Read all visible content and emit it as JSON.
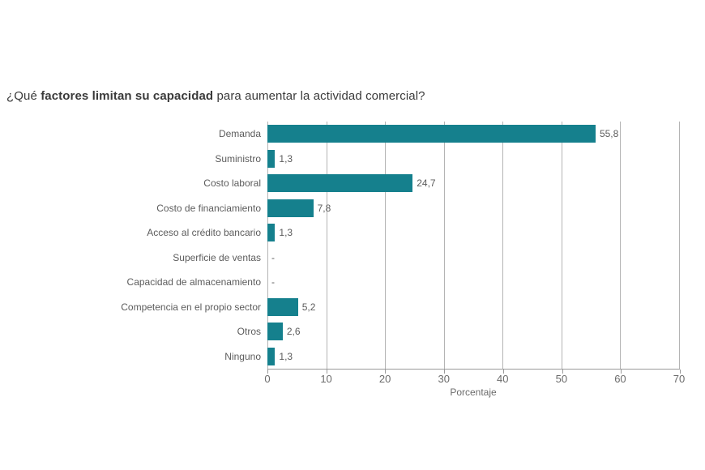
{
  "page": {
    "background": "#ffffff"
  },
  "title": {
    "prefix": "¿Qué ",
    "bold": "factores limitan su capacidad",
    "suffix": " para aumentar la actividad comercial?"
  },
  "chart_data": {
    "type": "bar",
    "orientation": "horizontal",
    "title": "¿Qué factores limitan su capacidad para aumentar la actividad comercial?",
    "categories": [
      "Demanda",
      "Suministro",
      "Costo laboral",
      "Costo de financiamiento",
      "Acceso al crédito bancario",
      "Superficie de ventas",
      "Capacidad de almacenamiento",
      "Competencia en el propio sector",
      "Otros",
      "Ninguno"
    ],
    "values": [
      55.8,
      1.3,
      24.7,
      7.8,
      1.3,
      null,
      null,
      5.2,
      2.6,
      1.3
    ],
    "value_labels": [
      "55,8",
      "1,3",
      "24,7",
      "7,8",
      "1,3",
      "-",
      "-",
      "5,2",
      "2,6",
      "1,3"
    ],
    "xlabel": "Porcentaje",
    "ylabel": "",
    "xlim": [
      0,
      70
    ],
    "xticks": [
      0,
      10,
      20,
      30,
      40,
      50,
      60,
      70
    ],
    "grid": true,
    "legend": "none",
    "bar_color": "#15808D",
    "gridline_color": "#b4b4b4",
    "axis_color": "#9a9a9a",
    "label_color": "#5c5c5c",
    "tick_color": "#6b6b6b",
    "title_color": "#3a3a3a"
  }
}
